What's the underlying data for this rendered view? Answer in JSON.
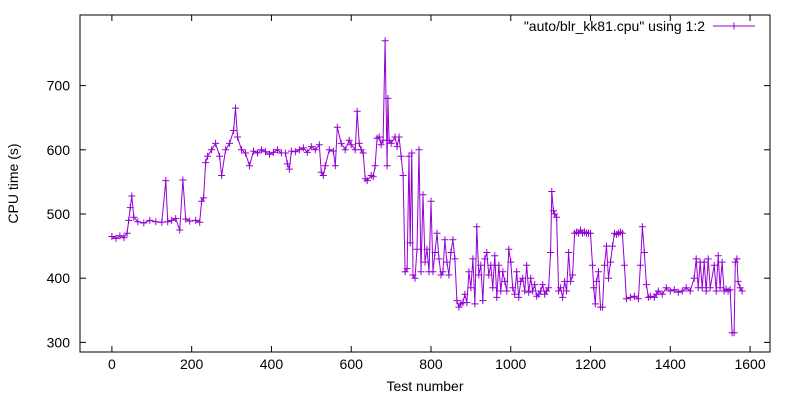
{
  "chart_data": {
    "type": "line",
    "title": "",
    "xlabel": "Test number",
    "ylabel": "CPU time (s)",
    "xlim": [
      -80,
      1650
    ],
    "ylim": [
      285,
      810
    ],
    "x_ticks": [
      0,
      200,
      400,
      600,
      800,
      1000,
      1200,
      1400,
      1600
    ],
    "x_tick_labels": [
      "0",
      "200",
      "400",
      "600",
      "800",
      "1000",
      "1200",
      "1400",
      "1600"
    ],
    "y_ticks": [
      300,
      400,
      500,
      600,
      700
    ],
    "y_tick_labels": [
      "300",
      "400",
      "500",
      "600",
      "700"
    ],
    "grid": false,
    "legend_position": "top-right",
    "series_color": "#9400d3",
    "series": [
      {
        "name": "\"auto/blr_kk81.cpu\" using 1:2",
        "marker": "plus",
        "points": [
          [
            0,
            465
          ],
          [
            10,
            462
          ],
          [
            20,
            466
          ],
          [
            30,
            463
          ],
          [
            38,
            470
          ],
          [
            42,
            490
          ],
          [
            46,
            510
          ],
          [
            50,
            528
          ],
          [
            55,
            495
          ],
          [
            65,
            488
          ],
          [
            80,
            486
          ],
          [
            95,
            490
          ],
          [
            110,
            488
          ],
          [
            125,
            487
          ],
          [
            135,
            552
          ],
          [
            140,
            488
          ],
          [
            150,
            490
          ],
          [
            160,
            493
          ],
          [
            170,
            475
          ],
          [
            178,
            553
          ],
          [
            185,
            492
          ],
          [
            195,
            489
          ],
          [
            210,
            490
          ],
          [
            220,
            487
          ],
          [
            225,
            520
          ],
          [
            230,
            525
          ],
          [
            235,
            580
          ],
          [
            240,
            590
          ],
          [
            250,
            600
          ],
          [
            260,
            610
          ],
          [
            270,
            590
          ],
          [
            275,
            560
          ],
          [
            285,
            600
          ],
          [
            295,
            610
          ],
          [
            305,
            630
          ],
          [
            310,
            665
          ],
          [
            315,
            620
          ],
          [
            325,
            600
          ],
          [
            335,
            595
          ],
          [
            345,
            575
          ],
          [
            355,
            598
          ],
          [
            365,
            595
          ],
          [
            375,
            600
          ],
          [
            385,
            597
          ],
          [
            395,
            593
          ],
          [
            405,
            596
          ],
          [
            415,
            600
          ],
          [
            425,
            595
          ],
          [
            435,
            595
          ],
          [
            440,
            578
          ],
          [
            445,
            570
          ],
          [
            450,
            598
          ],
          [
            460,
            597
          ],
          [
            470,
            600
          ],
          [
            480,
            603
          ],
          [
            490,
            596
          ],
          [
            500,
            605
          ],
          [
            510,
            600
          ],
          [
            520,
            608
          ],
          [
            525,
            565
          ],
          [
            530,
            560
          ],
          [
            535,
            575
          ],
          [
            545,
            600
          ],
          [
            555,
            598
          ],
          [
            560,
            575
          ],
          [
            565,
            635
          ],
          [
            575,
            610
          ],
          [
            585,
            600
          ],
          [
            595,
            615
          ],
          [
            600,
            608
          ],
          [
            610,
            600
          ],
          [
            615,
            660
          ],
          [
            620,
            610
          ],
          [
            625,
            600
          ],
          [
            630,
            595
          ],
          [
            635,
            555
          ],
          [
            640,
            552
          ],
          [
            650,
            560
          ],
          [
            655,
            558
          ],
          [
            660,
            575
          ],
          [
            665,
            618
          ],
          [
            670,
            620
          ],
          [
            675,
            608
          ],
          [
            680,
            615
          ],
          [
            685,
            770
          ],
          [
            690,
            575
          ],
          [
            692,
            680
          ],
          [
            695,
            615
          ],
          [
            700,
            610
          ],
          [
            710,
            620
          ],
          [
            715,
            605
          ],
          [
            720,
            620
          ],
          [
            725,
            590
          ],
          [
            730,
            560
          ],
          [
            735,
            410
          ],
          [
            740,
            415
          ],
          [
            745,
            590
          ],
          [
            748,
            455
          ],
          [
            752,
            595
          ],
          [
            755,
            405
          ],
          [
            760,
            400
          ],
          [
            765,
            445
          ],
          [
            770,
            600
          ],
          [
            775,
            410
          ],
          [
            780,
            530
          ],
          [
            785,
            425
          ],
          [
            790,
            445
          ],
          [
            795,
            410
          ],
          [
            800,
            520
          ],
          [
            805,
            410
          ],
          [
            810,
            440
          ],
          [
            815,
            470
          ],
          [
            820,
            430
          ],
          [
            825,
            405
          ],
          [
            830,
            410
          ],
          [
            835,
            460
          ],
          [
            840,
            425
          ],
          [
            845,
            405
          ],
          [
            850,
            440
          ],
          [
            855,
            460
          ],
          [
            860,
            430
          ],
          [
            865,
            365
          ],
          [
            870,
            355
          ],
          [
            875,
            360
          ],
          [
            880,
            362
          ],
          [
            885,
            375
          ],
          [
            890,
            362
          ],
          [
            895,
            410
          ],
          [
            900,
            385
          ],
          [
            905,
            430
          ],
          [
            910,
            360
          ],
          [
            915,
            480
          ],
          [
            920,
            405
          ],
          [
            925,
            420
          ],
          [
            930,
            365
          ],
          [
            935,
            430
          ],
          [
            940,
            440
          ],
          [
            945,
            405
          ],
          [
            950,
            420
          ],
          [
            955,
            385
          ],
          [
            960,
            435
          ],
          [
            965,
            370
          ],
          [
            970,
            420
          ],
          [
            975,
            380
          ],
          [
            980,
            410
          ],
          [
            985,
            395
          ],
          [
            990,
            380
          ],
          [
            995,
            445
          ],
          [
            1000,
            425
          ],
          [
            1005,
            385
          ],
          [
            1010,
            375
          ],
          [
            1015,
            410
          ],
          [
            1020,
            370
          ],
          [
            1025,
            395
          ],
          [
            1030,
            400
          ],
          [
            1035,
            380
          ],
          [
            1040,
            420
          ],
          [
            1045,
            378
          ],
          [
            1050,
            400
          ],
          [
            1055,
            380
          ],
          [
            1060,
            390
          ],
          [
            1065,
            372
          ],
          [
            1070,
            375
          ],
          [
            1075,
            380
          ],
          [
            1080,
            390
          ],
          [
            1085,
            375
          ],
          [
            1090,
            380
          ],
          [
            1095,
            385
          ],
          [
            1100,
            440
          ],
          [
            1103,
            535
          ],
          [
            1107,
            505
          ],
          [
            1110,
            500
          ],
          [
            1115,
            495
          ],
          [
            1120,
            380
          ],
          [
            1125,
            385
          ],
          [
            1130,
            370
          ],
          [
            1135,
            395
          ],
          [
            1140,
            380
          ],
          [
            1145,
            440
          ],
          [
            1150,
            395
          ],
          [
            1155,
            405
          ],
          [
            1160,
            470
          ],
          [
            1165,
            472
          ],
          [
            1170,
            470
          ],
          [
            1175,
            475
          ],
          [
            1180,
            470
          ],
          [
            1185,
            472
          ],
          [
            1190,
            470
          ],
          [
            1195,
            470
          ],
          [
            1200,
            470
          ],
          [
            1205,
            420
          ],
          [
            1208,
            385
          ],
          [
            1212,
            360
          ],
          [
            1215,
            395
          ],
          [
            1220,
            410
          ],
          [
            1225,
            355
          ],
          [
            1230,
            355
          ],
          [
            1235,
            420
          ],
          [
            1240,
            450
          ],
          [
            1245,
            400
          ],
          [
            1250,
            425
          ],
          [
            1255,
            450
          ],
          [
            1260,
            470
          ],
          [
            1265,
            468
          ],
          [
            1270,
            470
          ],
          [
            1275,
            472
          ],
          [
            1280,
            470
          ],
          [
            1285,
            420
          ],
          [
            1290,
            368
          ],
          [
            1300,
            370
          ],
          [
            1310,
            372
          ],
          [
            1320,
            368
          ],
          [
            1325,
            420
          ],
          [
            1330,
            480
          ],
          [
            1335,
            440
          ],
          [
            1340,
            390
          ],
          [
            1345,
            370
          ],
          [
            1350,
            372
          ],
          [
            1360,
            370
          ],
          [
            1365,
            375
          ],
          [
            1370,
            380
          ],
          [
            1380,
            375
          ],
          [
            1390,
            385
          ],
          [
            1400,
            380
          ],
          [
            1410,
            382
          ],
          [
            1420,
            378
          ],
          [
            1430,
            380
          ],
          [
            1440,
            385
          ],
          [
            1450,
            380
          ],
          [
            1460,
            400
          ],
          [
            1465,
            430
          ],
          [
            1470,
            385
          ],
          [
            1475,
            425
          ],
          [
            1480,
            385
          ],
          [
            1485,
            425
          ],
          [
            1490,
            380
          ],
          [
            1495,
            430
          ],
          [
            1500,
            385
          ],
          [
            1510,
            420
          ],
          [
            1515,
            380
          ],
          [
            1520,
            435
          ],
          [
            1525,
            385
          ],
          [
            1530,
            425
          ],
          [
            1535,
            380
          ],
          [
            1540,
            383
          ],
          [
            1545,
            380
          ],
          [
            1550,
            382
          ],
          [
            1555,
            315
          ],
          [
            1560,
            315
          ],
          [
            1563,
            425
          ],
          [
            1567,
            430
          ],
          [
            1570,
            395
          ],
          [
            1575,
            385
          ],
          [
            1580,
            380
          ]
        ]
      }
    ]
  }
}
